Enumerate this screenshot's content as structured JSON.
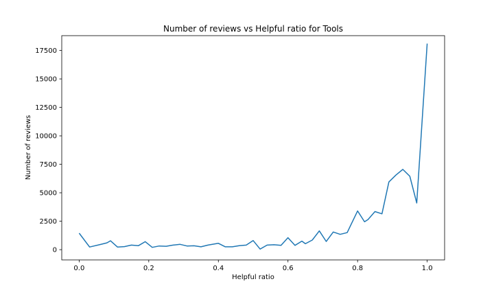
{
  "chart_data": {
    "type": "line",
    "title": "Number of reviews vs Helpful ratio for Tools",
    "xlabel": "Helpful ratio",
    "ylabel": "Number of reviews",
    "xlim": [
      -0.05,
      1.05
    ],
    "ylim": [
      -900,
      18800
    ],
    "xticks": [
      0.0,
      0.2,
      0.4,
      0.6,
      0.8,
      1.0
    ],
    "xtick_labels": [
      "0.0",
      "0.2",
      "0.4",
      "0.6",
      "0.8",
      "1.0"
    ],
    "yticks": [
      0,
      2500,
      5000,
      7500,
      10000,
      12500,
      15000,
      17500
    ],
    "ytick_labels": [
      "0",
      "2500",
      "5000",
      "7500",
      "10000",
      "12500",
      "15000",
      "17500"
    ],
    "grid": false,
    "line_color": "#1f77b4",
    "x": [
      0.0,
      0.03,
      0.06,
      0.08,
      0.09,
      0.11,
      0.13,
      0.15,
      0.17,
      0.19,
      0.21,
      0.23,
      0.25,
      0.27,
      0.29,
      0.31,
      0.33,
      0.35,
      0.37,
      0.4,
      0.42,
      0.44,
      0.46,
      0.48,
      0.5,
      0.52,
      0.54,
      0.56,
      0.58,
      0.6,
      0.62,
      0.64,
      0.65,
      0.67,
      0.69,
      0.71,
      0.73,
      0.75,
      0.77,
      0.8,
      0.82,
      0.83,
      0.85,
      0.87,
      0.89,
      0.91,
      0.93,
      0.95,
      0.97,
      1.0
    ],
    "y": [
      1450,
      230,
      450,
      600,
      780,
      230,
      270,
      400,
      350,
      700,
      200,
      320,
      300,
      400,
      470,
      320,
      340,
      250,
      400,
      560,
      250,
      250,
      350,
      400,
      800,
      50,
      400,
      430,
      380,
      1050,
      380,
      750,
      520,
      850,
      1650,
      720,
      1550,
      1350,
      1500,
      3400,
      2450,
      2650,
      3350,
      3150,
      5950,
      6550,
      7050,
      6450,
      4100,
      18100
    ]
  }
}
